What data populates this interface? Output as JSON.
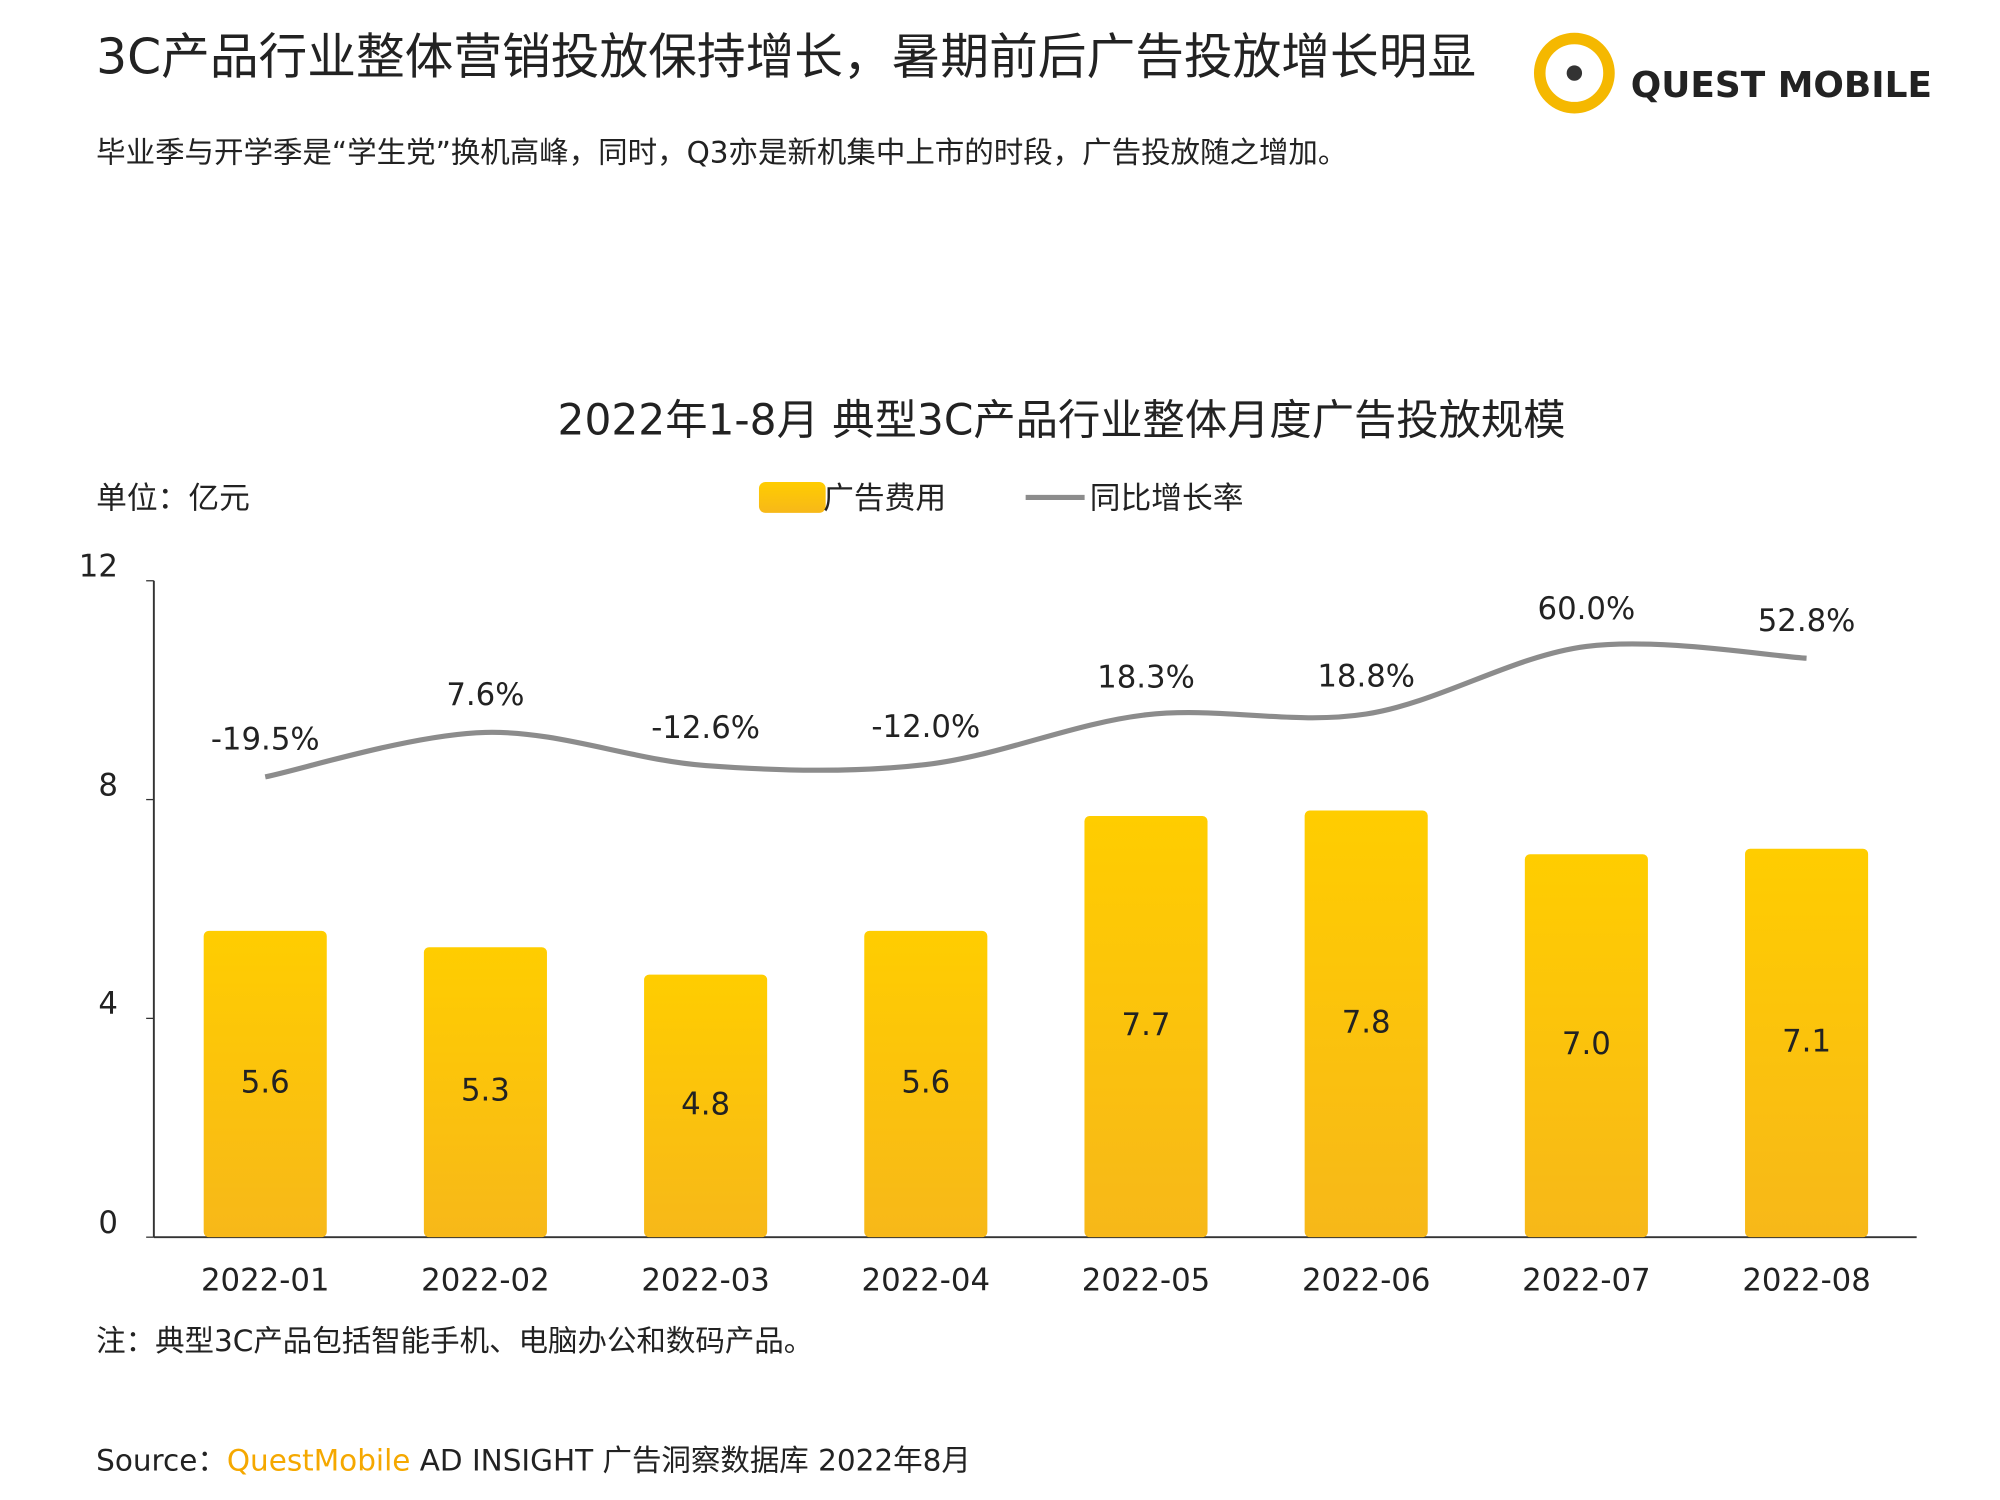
{
  "header": {
    "title": "3C产品行业整体营销投放保持增长，暑期前后广告投放增长明显",
    "subtitle": "毕业季与开学季是“学生党”换机高峰，同时，Q3亦是新机集中上市的时段，广告投放随之增加。",
    "logo": "QUEST MOBILE"
  },
  "chart_data": {
    "type": "bar-line",
    "title": "2022年1-8月 典型3C产品行业整体月度广告投放规模",
    "y_label": "单位：亿元",
    "categories": [
      "2022-01",
      "2022-02",
      "2022-03",
      "2022-04",
      "2022-05",
      "2022-06",
      "2022-07",
      "2022-08"
    ],
    "series": [
      {
        "name": "广告费用",
        "type": "bar",
        "color": "#FFC700",
        "values": [
          5.6,
          5.3,
          4.8,
          5.6,
          7.7,
          7.8,
          7.0,
          7.1
        ],
        "value_labels": [
          "5.6",
          "5.3",
          "4.8",
          "5.6",
          "7.7",
          "7.8",
          "7.0",
          "7.1"
        ]
      },
      {
        "name": "同比增长率",
        "type": "line",
        "axis": "y2",
        "color": "#8C8C8C",
        "values": [
          -19.5,
          7.6,
          -12.6,
          -12.0,
          18.3,
          18.8,
          60.0,
          52.8
        ],
        "value_labels": [
          "-19.5%",
          "7.6%",
          "-12.6%",
          "-12.0%",
          "18.3%",
          "18.8%",
          "60.0%",
          "52.8%"
        ]
      }
    ],
    "ylim": [
      0,
      12
    ],
    "yticks": [
      0,
      4,
      8,
      12
    ],
    "y2lim": [
      -300,
      100
    ],
    "legend": "top",
    "grid": false
  },
  "footer": {
    "note": "注：典型3C产品包括智能手机、电脑办公和数码产品。",
    "source_label": "Source：",
    "source_brand": "QuestMobile",
    "source_rest": " AD INSIGHT 广告洞察数据库 2022年8月"
  }
}
